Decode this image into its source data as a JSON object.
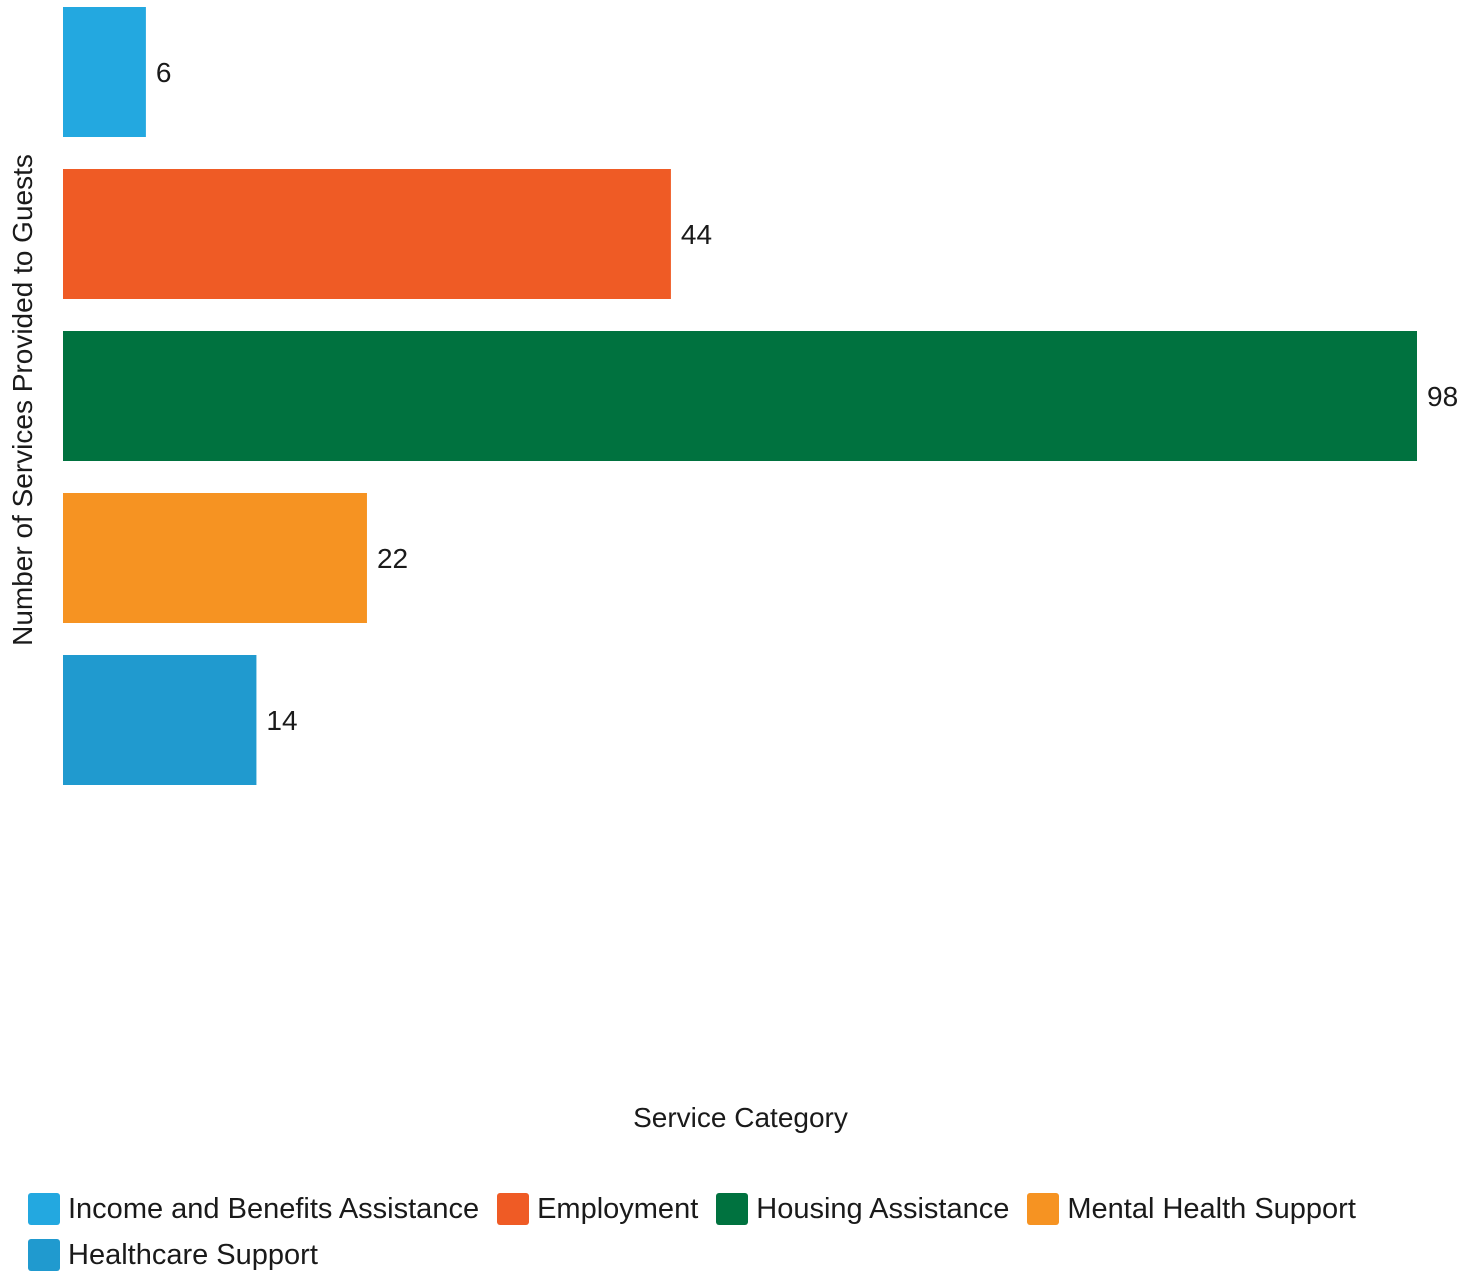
{
  "chart_data": {
    "type": "bar",
    "orientation": "horizontal",
    "xlabel": "Service Category",
    "ylabel": "Number of Services Provided to Guests",
    "categories": [
      "Income and Benefits Assistance",
      "Employment",
      "Housing Assistance",
      "Mental Health Support",
      "Healthcare Support"
    ],
    "values": [
      6,
      44,
      98,
      22,
      14
    ],
    "colors": [
      "#23A8E0",
      "#EF5B25",
      "#00723F",
      "#F69322",
      "#209ACF"
    ],
    "data_labels": [
      "6",
      "44",
      "98",
      "22",
      "14"
    ],
    "xlim": [
      0,
      98
    ],
    "grid": false,
    "legend_position": "bottom"
  }
}
